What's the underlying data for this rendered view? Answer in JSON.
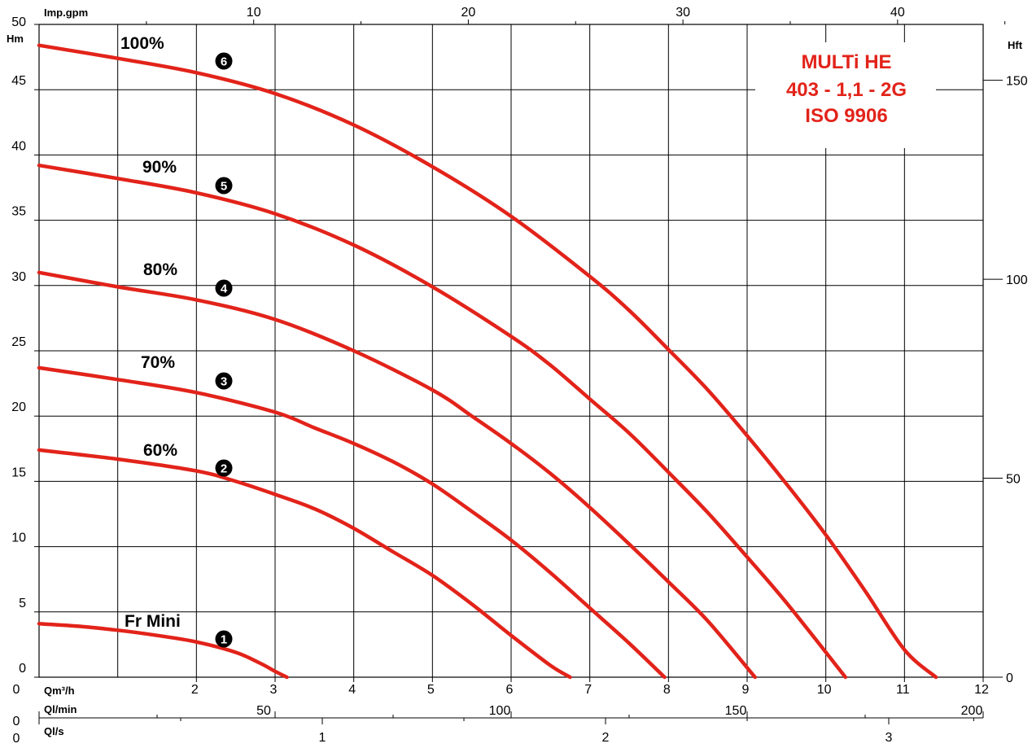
{
  "chart_data": {
    "type": "line",
    "title_lines": [
      "MULTi HE",
      "403 - 1,1 - 2G",
      "ISO 9906"
    ],
    "y_axis": {
      "unit_label": "Hm",
      "ticks": [
        0,
        5,
        10,
        15,
        20,
        25,
        30,
        35,
        40,
        45,
        50
      ],
      "ylim": [
        0,
        50
      ]
    },
    "x_axis": {
      "unit_label": "Qm³/h",
      "ticks": [
        0,
        2,
        3,
        4,
        5,
        6,
        7,
        8,
        9,
        10,
        11,
        12
      ],
      "xlim": [
        0,
        12
      ]
    },
    "top_axis": {
      "unit_label": "Imp.gpm",
      "ticks": [
        10,
        20,
        30,
        40
      ]
    },
    "right_axis": {
      "unit_label": "Hft",
      "ticks": [
        0,
        50,
        100,
        150
      ]
    },
    "lmin_axis": {
      "unit_label": "Ql/min",
      "zero_label": "0",
      "ticks": [
        50,
        100,
        150,
        200
      ]
    },
    "ls_axis": {
      "unit_label": "Ql/s",
      "zero_label": "0",
      "ticks": [
        1,
        2,
        3
      ]
    },
    "grid": true,
    "series": [
      {
        "name": "Fr Mini",
        "badge": "1",
        "x": [
          0,
          0.5,
          1,
          1.5,
          2,
          2.5,
          2.8,
          3.0,
          3.15
        ],
        "y": [
          4.1,
          3.9,
          3.6,
          3.2,
          2.7,
          1.9,
          1.1,
          0.45,
          0
        ]
      },
      {
        "name": "60%",
        "badge": "2",
        "x": [
          0,
          1,
          2,
          2.5,
          3,
          3.5,
          4,
          4.5,
          5,
          5.5,
          6,
          6.5,
          6.75
        ],
        "y": [
          17.4,
          16.7,
          15.8,
          15.0,
          14.0,
          12.9,
          11.4,
          9.6,
          7.8,
          5.6,
          3.2,
          0.9,
          0
        ]
      },
      {
        "name": "70%",
        "badge": "3",
        "x": [
          0,
          1,
          2,
          3,
          3.5,
          4,
          4.5,
          5,
          5.5,
          6,
          6.5,
          7,
          7.5,
          7.95
        ],
        "y": [
          23.7,
          22.8,
          21.8,
          20.3,
          19.1,
          17.9,
          16.5,
          14.8,
          12.7,
          10.5,
          8.0,
          5.3,
          2.6,
          0
        ]
      },
      {
        "name": "80%",
        "badge": "4",
        "x": [
          0,
          1,
          2,
          3,
          4,
          5,
          5.5,
          6,
          6.5,
          7,
          7.5,
          8,
          8.5,
          9.1
        ],
        "y": [
          31.0,
          29.9,
          28.9,
          27.4,
          25.0,
          22.0,
          20.0,
          17.9,
          15.6,
          13.0,
          10.2,
          7.3,
          4.3,
          0
        ]
      },
      {
        "name": "90%",
        "badge": "5",
        "x": [
          0,
          1,
          2,
          3,
          4,
          5,
          6,
          6.5,
          7,
          7.5,
          8,
          8.5,
          9,
          9.5,
          10.25
        ],
        "y": [
          39.2,
          38.2,
          37.1,
          35.5,
          33.1,
          29.9,
          26.1,
          23.9,
          21.3,
          18.7,
          15.7,
          12.6,
          9.2,
          5.7,
          0
        ]
      },
      {
        "name": "100%",
        "badge": "6",
        "x": [
          0,
          1,
          2,
          3,
          4,
          5,
          6,
          7,
          7.5,
          8,
          8.5,
          9,
          9.5,
          10,
          10.5,
          11,
          11.4
        ],
        "y": [
          48.4,
          47.4,
          46.3,
          44.7,
          42.3,
          39.1,
          35.3,
          30.7,
          28.1,
          25.1,
          22.0,
          18.5,
          14.8,
          10.9,
          6.6,
          2.1,
          0
        ]
      }
    ]
  }
}
